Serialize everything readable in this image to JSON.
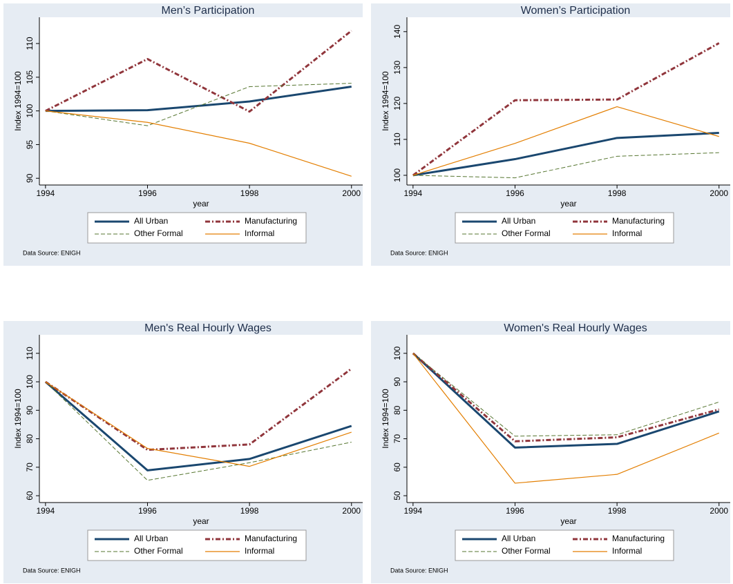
{
  "chart_data": [
    {
      "type": "line",
      "title": "Men’s Participation",
      "xlabel": "year",
      "ylabel": "Index 1994=100",
      "note": "Data Source: ENIGH",
      "x": [
        1994,
        1996,
        1998,
        2000
      ],
      "xlim": [
        1993.88,
        2000.22
      ],
      "xticks": [
        1994,
        1996,
        1998,
        2000
      ],
      "ylim": [
        89,
        113.9
      ],
      "yticks": [
        90,
        95,
        100,
        105,
        110
      ],
      "grid": false,
      "legend": "bottom",
      "series": [
        {
          "name": "All Urban",
          "color": "#1a476f",
          "style": "thick",
          "values": [
            100,
            100.1,
            101.4,
            103.6
          ]
        },
        {
          "name": "Manufacturing",
          "color": "#90353b",
          "style": "dashdot",
          "values": [
            100,
            107.7,
            99.9,
            111.9
          ]
        },
        {
          "name": "Other Formal",
          "color": "#55752f",
          "style": "dash",
          "values": [
            100,
            97.8,
            103.6,
            104.1
          ]
        },
        {
          "name": "Informal",
          "color": "#e37e00",
          "style": "thin",
          "values": [
            100,
            98.3,
            95.2,
            90.3
          ]
        }
      ]
    },
    {
      "type": "line",
      "title": "Women’s Participation",
      "xlabel": "year",
      "ylabel": "Index 1994=100",
      "note": "Data Source: ENIGH",
      "x": [
        1994,
        1996,
        1998,
        2000
      ],
      "xlim": [
        1993.88,
        2000.22
      ],
      "xticks": [
        1994,
        1996,
        1998,
        2000
      ],
      "ylim": [
        97.3,
        144
      ],
      "yticks": [
        100,
        110,
        120,
        130,
        140
      ],
      "grid": false,
      "legend": "bottom",
      "series": [
        {
          "name": "All Urban",
          "color": "#1a476f",
          "style": "thick",
          "values": [
            100,
            104.5,
            110.4,
            111.8
          ]
        },
        {
          "name": "Manufacturing",
          "color": "#90353b",
          "style": "dashdot",
          "values": [
            100,
            120.9,
            121.1,
            136.8
          ]
        },
        {
          "name": "Other Formal",
          "color": "#55752f",
          "style": "dash",
          "values": [
            100,
            99.3,
            105.3,
            106.3
          ]
        },
        {
          "name": "Informal",
          "color": "#e37e00",
          "style": "thin",
          "values": [
            100,
            108.9,
            119.1,
            110.8
          ]
        }
      ]
    },
    {
      "type": "line",
      "title": "Men's Real Hourly Wages",
      "xlabel": "year",
      "ylabel": "Index 1994=100",
      "note": "Data Source: ENIGH",
      "x": [
        1994,
        1996,
        1998,
        2000
      ],
      "xlim": [
        1993.88,
        2000.22
      ],
      "xticks": [
        1994,
        1996,
        1998,
        2000
      ],
      "ylim": [
        57.6,
        116.5
      ],
      "yticks": [
        60,
        70,
        80,
        90,
        100,
        110
      ],
      "grid": false,
      "legend": "bottom",
      "series": [
        {
          "name": "All Urban",
          "color": "#1a476f",
          "style": "thick",
          "values": [
            100,
            68.9,
            72.9,
            84.5
          ]
        },
        {
          "name": "Manufacturing",
          "color": "#90353b",
          "style": "dashdot",
          "values": [
            100,
            76.1,
            78.0,
            104.6
          ]
        },
        {
          "name": "Other Formal",
          "color": "#55752f",
          "style": "dash",
          "values": [
            100,
            65.4,
            71.6,
            78.8
          ]
        },
        {
          "name": "Informal",
          "color": "#e37e00",
          "style": "thin",
          "values": [
            100,
            76.6,
            70.3,
            82.3
          ]
        }
      ]
    },
    {
      "type": "line",
      "title": "Women's Real Hourly Wages",
      "xlabel": "year",
      "ylabel": "Index 1994=100",
      "note": "Data Source: ENIGH",
      "x": [
        1994,
        1996,
        1998,
        2000
      ],
      "xlim": [
        1993.88,
        2000.22
      ],
      "xticks": [
        1994,
        1996,
        1998,
        2000
      ],
      "ylim": [
        47.6,
        106.5
      ],
      "yticks": [
        50,
        60,
        70,
        80,
        90,
        100
      ],
      "grid": false,
      "legend": "bottom",
      "series": [
        {
          "name": "All Urban",
          "color": "#1a476f",
          "style": "thick",
          "values": [
            100,
            66.9,
            68.2,
            79.6
          ]
        },
        {
          "name": "Manufacturing",
          "color": "#90353b",
          "style": "dashdot",
          "values": [
            100,
            69.1,
            70.5,
            80.3
          ]
        },
        {
          "name": "Other Formal",
          "color": "#55752f",
          "style": "dash",
          "values": [
            100,
            70.9,
            71.4,
            82.9
          ]
        },
        {
          "name": "Informal",
          "color": "#e37e00",
          "style": "thin",
          "values": [
            100,
            54.4,
            57.5,
            72.0
          ]
        }
      ]
    }
  ]
}
